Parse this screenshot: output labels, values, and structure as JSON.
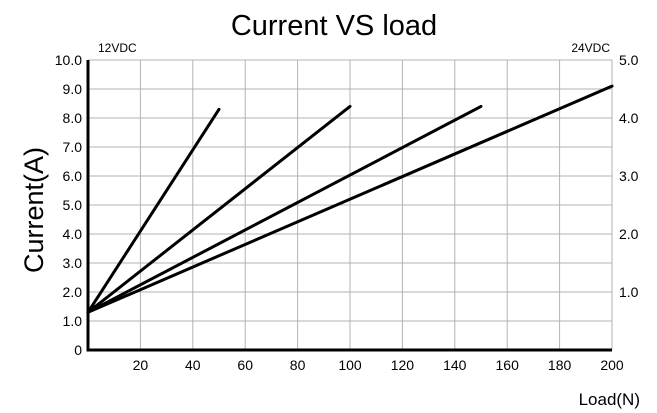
{
  "chart_data": {
    "type": "line",
    "title": "Current VS load",
    "xlabel": "Load(N)",
    "ylabel": "Current(A)",
    "left_axis_caption": "12VDC",
    "right_axis_caption": "24VDC",
    "xlim": [
      0,
      200
    ],
    "ylim": [
      0,
      10
    ],
    "y2lim": [
      0,
      5
    ],
    "grid": true,
    "x_ticks": [
      "20",
      "40",
      "60",
      "80",
      "100",
      "120",
      "140",
      "160",
      "180",
      "200"
    ],
    "y_ticks": [
      "0",
      "1.0",
      "2.0",
      "3.0",
      "4.0",
      "5.0",
      "6.0",
      "7.0",
      "8.0",
      "9.0",
      "10.0"
    ],
    "y2_ticks": [
      "1.0",
      "2.0",
      "3.0",
      "4.0",
      "5.0"
    ],
    "series": [
      {
        "x": [
          0,
          50
        ],
        "y": [
          1.3,
          8.3
        ]
      },
      {
        "x": [
          0,
          100
        ],
        "y": [
          1.3,
          8.4
        ]
      },
      {
        "x": [
          0,
          150
        ],
        "y": [
          1.3,
          8.4
        ]
      },
      {
        "x": [
          0,
          200
        ],
        "y": [
          1.3,
          9.1
        ]
      }
    ]
  }
}
